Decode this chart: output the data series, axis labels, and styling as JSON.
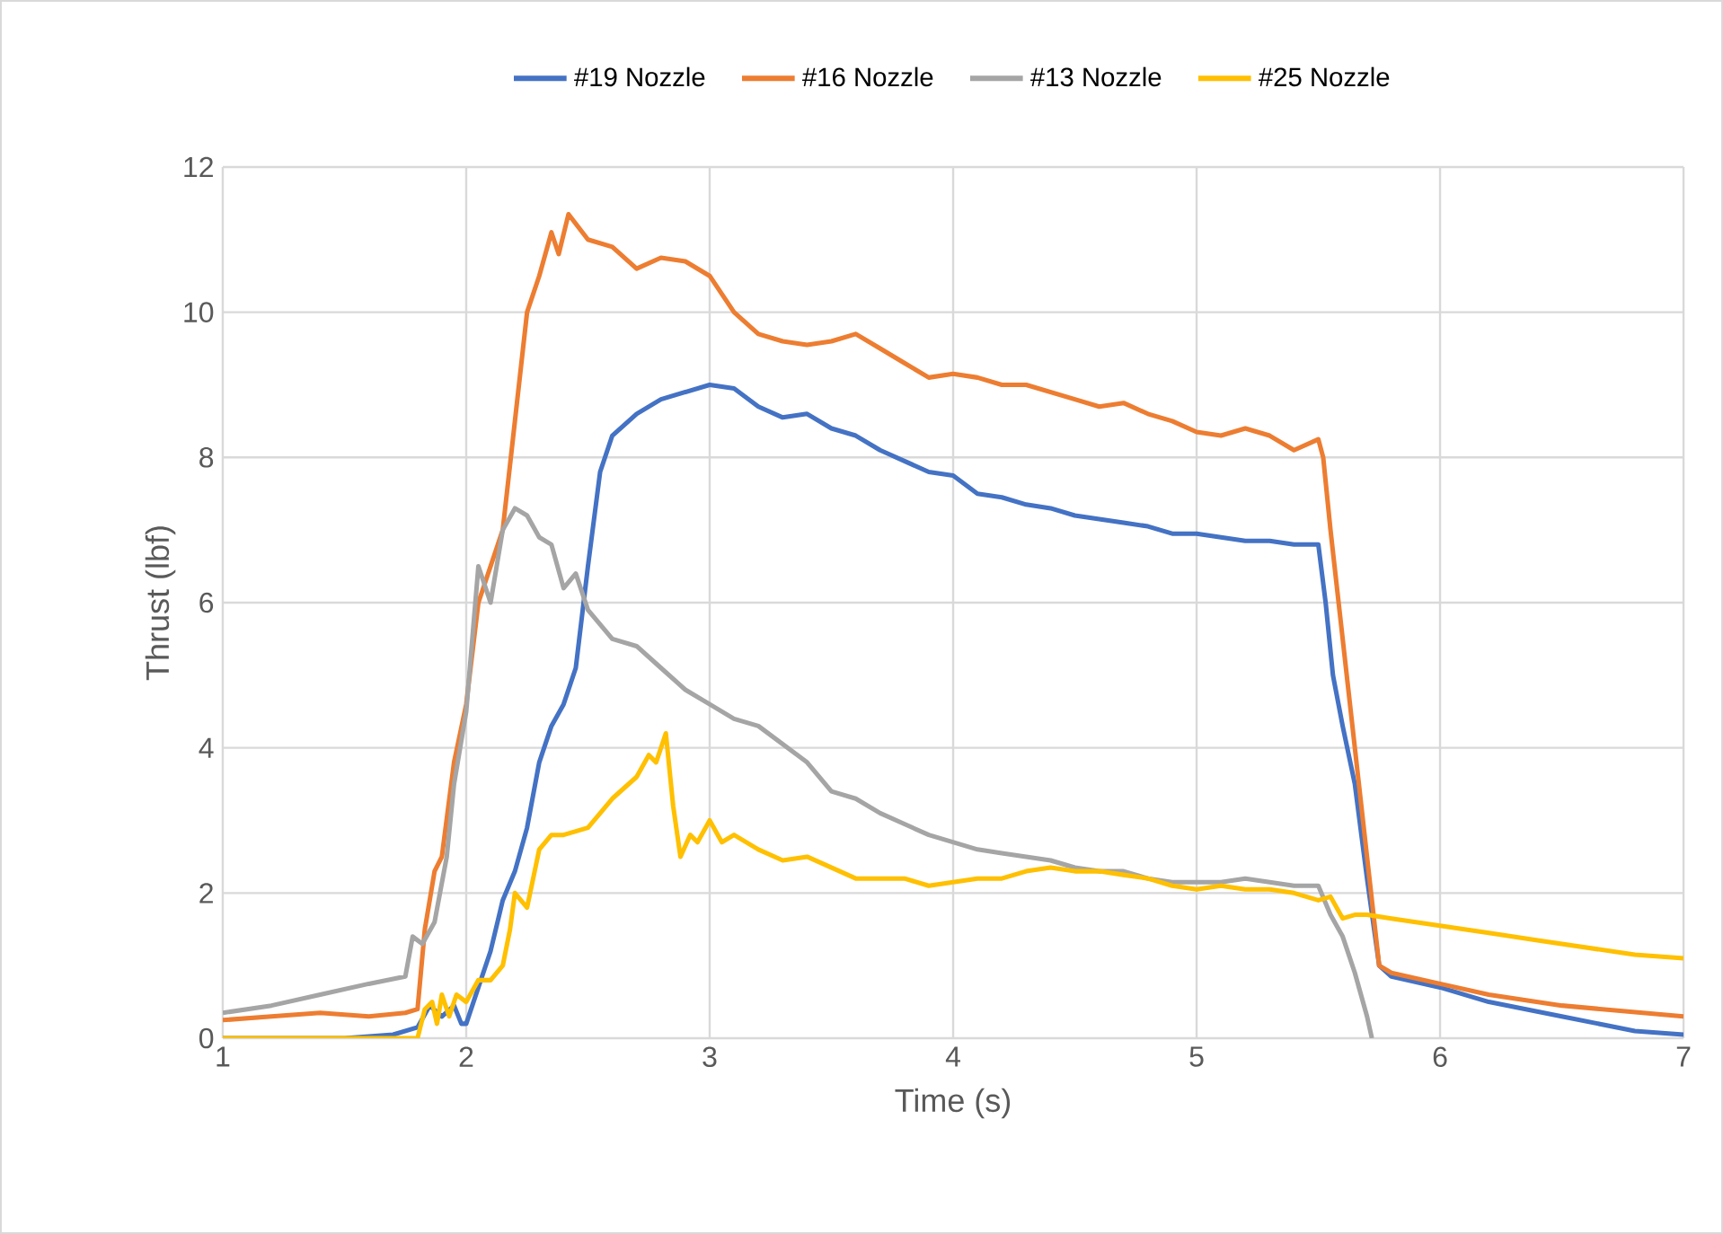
{
  "chart_data": {
    "type": "line",
    "xlabel": "Time (s)",
    "ylabel": "Thrust (lbf)",
    "xlim": [
      1,
      7
    ],
    "xticks": [
      1,
      2,
      3,
      4,
      5,
      6,
      7
    ],
    "ylim": [
      0,
      12
    ],
    "yticks": [
      0,
      2,
      4,
      6,
      8,
      10,
      12
    ],
    "grid": true,
    "legend": "top",
    "marker": "none",
    "line_style": "solid",
    "series": [
      {
        "name": "#19 Nozzle",
        "color": "#4472c4",
        "x": [
          1.0,
          1.5,
          1.7,
          1.8,
          1.85,
          1.9,
          1.95,
          1.98,
          2.0,
          2.05,
          2.1,
          2.15,
          2.2,
          2.25,
          2.3,
          2.35,
          2.4,
          2.45,
          2.5,
          2.55,
          2.6,
          2.7,
          2.8,
          2.9,
          3.0,
          3.1,
          3.2,
          3.3,
          3.4,
          3.5,
          3.6,
          3.7,
          3.8,
          3.9,
          4.0,
          4.1,
          4.2,
          4.3,
          4.4,
          4.5,
          4.6,
          4.7,
          4.8,
          4.9,
          5.0,
          5.1,
          5.2,
          5.3,
          5.4,
          5.5,
          5.53,
          5.56,
          5.6,
          5.65,
          5.7,
          5.75,
          5.8,
          6.0,
          6.2,
          6.5,
          6.8,
          7.0
        ],
        "values": [
          0.0,
          0.0,
          0.05,
          0.15,
          0.45,
          0.3,
          0.45,
          0.2,
          0.2,
          0.7,
          1.2,
          1.9,
          2.3,
          2.9,
          3.8,
          4.3,
          4.6,
          5.1,
          6.5,
          7.8,
          8.3,
          8.6,
          8.8,
          8.9,
          9.0,
          8.95,
          8.7,
          8.55,
          8.6,
          8.4,
          8.3,
          8.1,
          7.95,
          7.8,
          7.75,
          7.5,
          7.45,
          7.35,
          7.3,
          7.2,
          7.15,
          7.1,
          7.05,
          6.95,
          6.95,
          6.9,
          6.85,
          6.85,
          6.8,
          6.8,
          6.0,
          5.0,
          4.3,
          3.5,
          2.2,
          1.0,
          0.85,
          0.7,
          0.5,
          0.3,
          0.1,
          0.05
        ]
      },
      {
        "name": "#16 Nozzle",
        "color": "#ed7d31",
        "x": [
          1.0,
          1.2,
          1.4,
          1.6,
          1.75,
          1.8,
          1.83,
          1.87,
          1.9,
          1.95,
          2.0,
          2.05,
          2.1,
          2.15,
          2.2,
          2.25,
          2.3,
          2.35,
          2.38,
          2.42,
          2.5,
          2.6,
          2.7,
          2.8,
          2.9,
          3.0,
          3.1,
          3.2,
          3.3,
          3.4,
          3.5,
          3.6,
          3.7,
          3.8,
          3.9,
          4.0,
          4.1,
          4.2,
          4.3,
          4.4,
          4.5,
          4.6,
          4.7,
          4.8,
          4.9,
          5.0,
          5.1,
          5.2,
          5.3,
          5.4,
          5.5,
          5.52,
          5.55,
          5.6,
          5.65,
          5.7,
          5.75,
          5.8,
          6.0,
          6.2,
          6.5,
          7.0
        ],
        "values": [
          0.25,
          0.3,
          0.35,
          0.3,
          0.35,
          0.4,
          1.5,
          2.3,
          2.5,
          3.8,
          4.6,
          6.0,
          6.5,
          7.0,
          8.5,
          10.0,
          10.5,
          11.1,
          10.8,
          11.35,
          11.0,
          10.9,
          10.6,
          10.75,
          10.7,
          10.5,
          10.0,
          9.7,
          9.6,
          9.55,
          9.6,
          9.7,
          9.5,
          9.3,
          9.1,
          9.15,
          9.1,
          9.0,
          9.0,
          8.9,
          8.8,
          8.7,
          8.75,
          8.6,
          8.5,
          8.35,
          8.3,
          8.4,
          8.3,
          8.1,
          8.25,
          8.0,
          7.0,
          5.5,
          4.0,
          2.5,
          1.0,
          0.9,
          0.75,
          0.6,
          0.45,
          0.3
        ]
      },
      {
        "name": "#13 Nozzle",
        "color": "#a5a5a5",
        "x": [
          1.0,
          1.2,
          1.4,
          1.6,
          1.75,
          1.78,
          1.82,
          1.87,
          1.92,
          1.95,
          2.0,
          2.05,
          2.1,
          2.15,
          2.2,
          2.25,
          2.3,
          2.35,
          2.4,
          2.45,
          2.5,
          2.55,
          2.6,
          2.7,
          2.8,
          2.9,
          3.0,
          3.1,
          3.2,
          3.3,
          3.4,
          3.5,
          3.6,
          3.7,
          3.8,
          3.9,
          4.0,
          4.1,
          4.2,
          4.3,
          4.4,
          4.5,
          4.6,
          4.7,
          4.8,
          4.9,
          5.0,
          5.1,
          5.2,
          5.3,
          5.4,
          5.5,
          5.55,
          5.6,
          5.65,
          5.7,
          5.72
        ],
        "values": [
          0.35,
          0.45,
          0.6,
          0.75,
          0.85,
          1.4,
          1.3,
          1.6,
          2.5,
          3.5,
          4.5,
          6.5,
          6.0,
          7.0,
          7.3,
          7.2,
          6.9,
          6.8,
          6.2,
          6.4,
          5.9,
          5.7,
          5.5,
          5.4,
          5.1,
          4.8,
          4.6,
          4.4,
          4.3,
          4.05,
          3.8,
          3.4,
          3.3,
          3.1,
          2.95,
          2.8,
          2.7,
          2.6,
          2.55,
          2.5,
          2.45,
          2.35,
          2.3,
          2.3,
          2.2,
          2.15,
          2.15,
          2.15,
          2.2,
          2.15,
          2.1,
          2.1,
          1.7,
          1.4,
          0.9,
          0.3,
          0.0
        ]
      },
      {
        "name": "#25 Nozzle",
        "color": "#ffc000",
        "x": [
          1.0,
          1.5,
          1.8,
          1.83,
          1.86,
          1.88,
          1.9,
          1.93,
          1.96,
          2.0,
          2.05,
          2.1,
          2.15,
          2.18,
          2.2,
          2.25,
          2.3,
          2.35,
          2.4,
          2.5,
          2.6,
          2.7,
          2.75,
          2.78,
          2.82,
          2.85,
          2.88,
          2.92,
          2.95,
          3.0,
          3.05,
          3.1,
          3.2,
          3.3,
          3.4,
          3.5,
          3.6,
          3.7,
          3.8,
          3.9,
          4.0,
          4.1,
          4.2,
          4.3,
          4.4,
          4.5,
          4.6,
          4.7,
          4.8,
          4.9,
          5.0,
          5.1,
          5.2,
          5.3,
          5.4,
          5.5,
          5.55,
          5.6,
          5.65,
          5.7,
          5.8,
          6.0,
          6.2,
          6.4,
          6.6,
          6.8,
          7.0
        ],
        "values": [
          0.0,
          0.0,
          0.0,
          0.4,
          0.5,
          0.2,
          0.6,
          0.3,
          0.6,
          0.5,
          0.8,
          0.8,
          1.0,
          1.5,
          2.0,
          1.8,
          2.6,
          2.8,
          2.8,
          2.9,
          3.3,
          3.6,
          3.9,
          3.8,
          4.2,
          3.2,
          2.5,
          2.8,
          2.7,
          3.0,
          2.7,
          2.8,
          2.6,
          2.45,
          2.5,
          2.35,
          2.2,
          2.2,
          2.2,
          2.1,
          2.15,
          2.2,
          2.2,
          2.3,
          2.35,
          2.3,
          2.3,
          2.25,
          2.2,
          2.1,
          2.05,
          2.1,
          2.05,
          2.05,
          2.0,
          1.9,
          1.95,
          1.65,
          1.7,
          1.7,
          1.65,
          1.55,
          1.45,
          1.35,
          1.25,
          1.15,
          1.1
        ]
      }
    ]
  }
}
